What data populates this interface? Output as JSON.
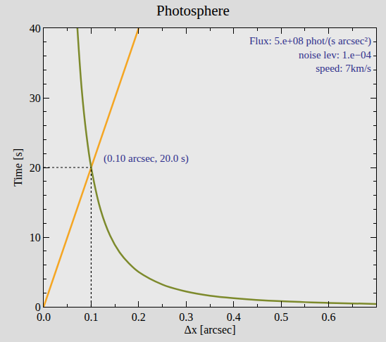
{
  "chart_data": {
    "type": "line",
    "title": "Photosphere",
    "x_label": "Δx [arcsec]",
    "y_label": "Time [s]",
    "xlim": [
      0,
      0.7
    ],
    "xticks": [
      {
        "value": 0,
        "label": "0.0"
      },
      {
        "value": 0.1,
        "label": "0.1"
      },
      {
        "value": 0.2,
        "label": "0.2"
      },
      {
        "value": 0.3,
        "label": "0.3"
      },
      {
        "value": 0.4,
        "label": "0.4"
      },
      {
        "value": 0.5,
        "label": "0.5"
      },
      {
        "value": 0.6,
        "label": "0.6"
      }
    ],
    "ylim": [
      0,
      40
    ],
    "yticks": [
      0,
      10,
      20,
      30,
      40
    ],
    "grid": false,
    "series": [
      {
        "color": "#f5a623",
        "line_style": "solid",
        "x": [
          0,
          0.2
        ],
        "values": [
          0,
          40
        ]
      },
      {
        "color": "#7d8a2c",
        "line_style": "solid",
        "x": [
          0.071,
          0.08,
          0.09,
          0.1,
          0.12,
          0.14,
          0.16,
          0.18,
          0.2,
          0.25,
          0.3,
          0.35,
          0.4,
          0.5,
          0.6,
          0.7
        ],
        "values": [
          40,
          31.3,
          24.7,
          20,
          13.9,
          10.2,
          7.8,
          6.2,
          5.0,
          3.2,
          2.2,
          1.6,
          1.25,
          0.8,
          0.56,
          0.41
        ]
      }
    ],
    "annotations": [
      {
        "text": "(0.10 arcsec, 20.0 s)",
        "x": 0.1,
        "y": 20,
        "line_style": "dotted"
      }
    ],
    "info": [
      "Flux: 5.e+08 phot/(s arcsec²)",
      "noise lev: 1.e−04",
      "speed: 7km/s"
    ]
  }
}
